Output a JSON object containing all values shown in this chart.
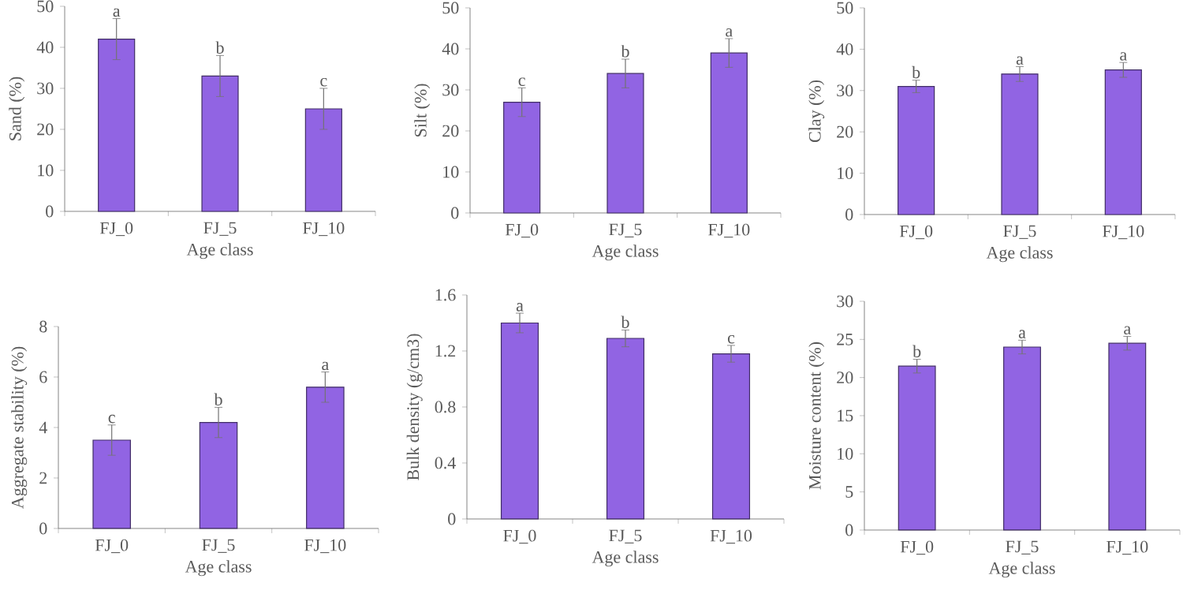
{
  "chart_data": [
    {
      "type": "bar",
      "categories": [
        "FJ_0",
        "FJ_5",
        "FJ_10"
      ],
      "values": [
        42,
        33,
        25
      ],
      "errors": [
        5,
        5,
        5
      ],
      "color": "#9164e3",
      "xlabel": "Age class",
      "ylabel": "Sand (%)",
      "ylim": [
        0,
        50
      ],
      "yticks": [
        0,
        10,
        20,
        30,
        40,
        50
      ],
      "annotations": [
        {
          "text": "a",
          "x": "FJ_0",
          "y": 47
        },
        {
          "text": "b",
          "x": "FJ_5",
          "y": 38
        },
        {
          "text": "c",
          "x": "FJ_10",
          "y": 30
        }
      ]
    },
    {
      "type": "bar",
      "categories": [
        "FJ_0",
        "FJ_5",
        "FJ_10"
      ],
      "values": [
        27,
        34,
        39
      ],
      "errors": [
        3.5,
        3.5,
        3.5
      ],
      "color": "#9164e3",
      "xlabel": "Age class",
      "ylabel": "Silt (%)",
      "ylim": [
        0,
        50
      ],
      "yticks": [
        0,
        10,
        20,
        30,
        40,
        50
      ],
      "annotations": [
        {
          "text": "c",
          "x": "FJ_0",
          "y": 30.5
        },
        {
          "text": "b",
          "x": "FJ_5",
          "y": 37.5
        },
        {
          "text": "a",
          "x": "FJ_10",
          "y": 42.5
        }
      ]
    },
    {
      "type": "bar",
      "categories": [
        "FJ_0",
        "FJ_5",
        "FJ_10"
      ],
      "values": [
        31,
        34,
        35
      ],
      "errors": [
        1.5,
        1.8,
        1.8
      ],
      "color": "#9164e3",
      "xlabel": "Age class",
      "ylabel": "Clay (%)",
      "ylim": [
        0,
        50
      ],
      "yticks": [
        0,
        10,
        20,
        30,
        40,
        50
      ],
      "annotations": [
        {
          "text": "b",
          "x": "FJ_0",
          "y": 32.5
        },
        {
          "text": "a",
          "x": "FJ_5",
          "y": 35.8
        },
        {
          "text": "a",
          "x": "FJ_10",
          "y": 36.8
        }
      ]
    },
    {
      "type": "bar",
      "categories": [
        "FJ_0",
        "FJ_5",
        "FJ_10"
      ],
      "values": [
        3.5,
        4.2,
        5.6
      ],
      "errors": [
        0.6,
        0.6,
        0.6
      ],
      "color": "#9164e3",
      "xlabel": "Age class",
      "ylabel": "Aggregate stability (%)",
      "ylim": [
        0,
        8
      ],
      "yticks": [
        0,
        2,
        4,
        6,
        8
      ],
      "annotations": [
        {
          "text": "c",
          "x": "FJ_0",
          "y": 4.1
        },
        {
          "text": "b",
          "x": "FJ_5",
          "y": 4.8
        },
        {
          "text": "a",
          "x": "FJ_10",
          "y": 6.2
        }
      ]
    },
    {
      "type": "bar",
      "categories": [
        "FJ_0",
        "FJ_5",
        "FJ_10"
      ],
      "values": [
        1.4,
        1.29,
        1.18
      ],
      "errors": [
        0.07,
        0.06,
        0.06
      ],
      "color": "#9164e3",
      "xlabel": "Age class",
      "ylabel": "Bulk density (g/cm3)",
      "ylim": [
        0,
        1.6
      ],
      "yticks": [
        0,
        0.4,
        0.8,
        1.2,
        1.6
      ],
      "annotations": [
        {
          "text": "a",
          "x": "FJ_0",
          "y": 1.47
        },
        {
          "text": "b",
          "x": "FJ_5",
          "y": 1.35
        },
        {
          "text": "c",
          "x": "FJ_10",
          "y": 1.24
        }
      ]
    },
    {
      "type": "bar",
      "categories": [
        "FJ_0",
        "FJ_5",
        "FJ_10"
      ],
      "values": [
        21.5,
        24,
        24.5
      ],
      "errors": [
        0.9,
        0.9,
        0.9
      ],
      "color": "#9164e3",
      "xlabel": "Age class",
      "ylabel": "Moisture content (%)",
      "ylim": [
        0,
        30
      ],
      "yticks": [
        0,
        5,
        10,
        15,
        20,
        25,
        30
      ],
      "annotations": [
        {
          "text": "b",
          "x": "FJ_0",
          "y": 22.4
        },
        {
          "text": "a",
          "x": "FJ_5",
          "y": 24.9
        },
        {
          "text": "a",
          "x": "FJ_10",
          "y": 25.4
        }
      ]
    }
  ]
}
